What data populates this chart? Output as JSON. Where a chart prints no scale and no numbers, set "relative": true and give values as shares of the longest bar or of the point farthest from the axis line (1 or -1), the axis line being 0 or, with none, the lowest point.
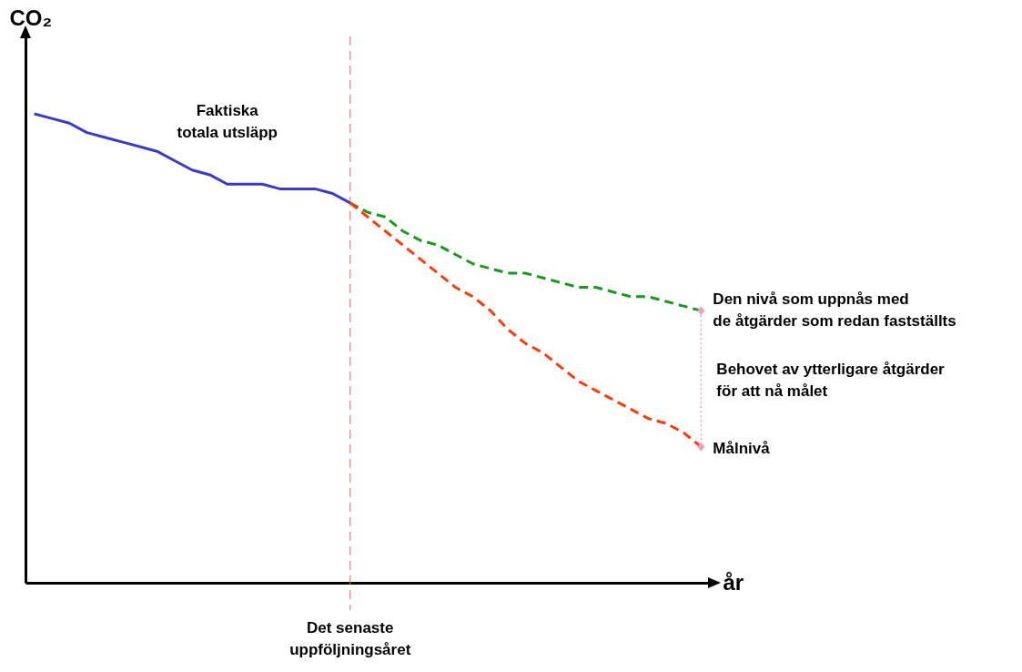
{
  "chart_data": {
    "type": "line",
    "xlabel": "år",
    "ylabel": "CO₂",
    "relative": true,
    "grid": false,
    "categories": [
      null,
      null,
      null,
      null,
      null,
      null,
      null,
      null,
      null,
      null,
      null,
      null,
      null,
      null,
      null,
      null,
      null,
      null,
      null,
      null,
      null,
      null,
      null,
      null,
      null,
      null,
      null,
      null,
      null,
      null,
      null,
      null,
      null,
      null,
      null,
      null,
      null,
      null,
      null
    ],
    "series": [
      {
        "color": "#3a3acc",
        "line_style": "solid",
        "values": [
          1,
          0.99,
          0.98,
          0.96,
          0.95,
          0.94,
          0.93,
          0.92,
          0.9,
          0.88,
          0.87,
          0.85,
          0.85,
          0.85,
          0.84,
          0.84,
          0.84,
          0.83,
          0.81,
          null,
          null,
          null,
          null,
          null,
          null,
          null,
          null,
          null,
          null,
          null,
          null,
          null,
          null,
          null,
          null,
          null,
          null,
          null,
          null
        ]
      },
      {
        "color": "#1a9a1a",
        "line_style": "dashed",
        "values": [
          null,
          null,
          null,
          null,
          null,
          null,
          null,
          null,
          null,
          null,
          null,
          null,
          null,
          null,
          null,
          null,
          null,
          null,
          0.81,
          0.79,
          0.78,
          0.75,
          0.73,
          0.72,
          0.7,
          0.68,
          0.67,
          0.66,
          0.66,
          0.65,
          0.64,
          0.63,
          0.63,
          0.62,
          0.61,
          0.61,
          0.6,
          0.59,
          0.58
        ]
      },
      {
        "color": "#ff3b0a",
        "line_style": "dashed",
        "values": [
          null,
          null,
          null,
          null,
          null,
          null,
          null,
          null,
          null,
          null,
          null,
          null,
          null,
          null,
          null,
          null,
          null,
          null,
          0.81,
          0.78,
          0.75,
          0.72,
          0.69,
          0.66,
          0.63,
          0.61,
          0.58,
          0.54,
          0.51,
          0.49,
          0.46,
          0.43,
          0.41,
          0.39,
          0.37,
          0.35,
          0.34,
          0.32,
          0.29
        ]
      }
    ],
    "annotations": [
      "Faktiska\ntotala utsläpp",
      "Den nivå som uppnås med\n de åtgärder som redan fastställts",
      "Målnivå",
      "Behovet av ytterligare åtgärder\n för att nå målet"
    ],
    "ref_lines": [
      {
        "axis": "x",
        "label": "Det senaste uppföljningsåret",
        "color": "#e07070",
        "line_style": "dashed"
      }
    ]
  }
}
